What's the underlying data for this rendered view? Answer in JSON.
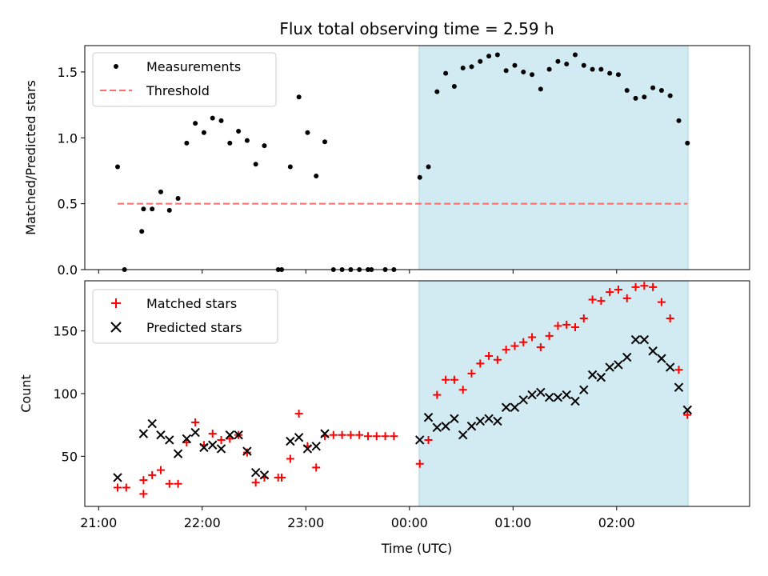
{
  "chart_data": [
    {
      "type": "scatter",
      "title": "Flux total observing time = 2.59 h",
      "ylabel": "Matched/Predicted stars",
      "ylim": [
        0,
        1.7
      ],
      "yticks": [
        "0.0",
        "0.5",
        "1.0",
        "1.5"
      ],
      "x_axis": "time (minutes relative to 21:00 UTC)",
      "xlim": [
        -8,
        377
      ],
      "shaded_region": {
        "x_start": 185.6,
        "x_end": 341.4,
        "color": "#add8e6"
      },
      "legend": {
        "position": "top-left",
        "entries": [
          "Measurements",
          "Threshold"
        ]
      },
      "threshold": {
        "name": "Threshold",
        "y": 0.5,
        "x_start": 11,
        "x_end": 341,
        "color": "#ff6b6b"
      },
      "series": [
        {
          "name": "Measurements",
          "color": "#000000",
          "points": [
            [
              11,
              0.78
            ],
            [
              15,
              0.0
            ],
            [
              25,
              0.29
            ],
            [
              26,
              0.46
            ],
            [
              31,
              0.46
            ],
            [
              36,
              0.59
            ],
            [
              41,
              0.45
            ],
            [
              46,
              0.54
            ],
            [
              51,
              0.96
            ],
            [
              56,
              1.11
            ],
            [
              61,
              1.04
            ],
            [
              66,
              1.15
            ],
            [
              71,
              1.13
            ],
            [
              76,
              0.96
            ],
            [
              81,
              1.05
            ],
            [
              86,
              0.98
            ],
            [
              91,
              0.8
            ],
            [
              96,
              0.94
            ],
            [
              104,
              0.0
            ],
            [
              106,
              0.0
            ],
            [
              111,
              0.78
            ],
            [
              116,
              1.31
            ],
            [
              121,
              1.04
            ],
            [
              126,
              0.71
            ],
            [
              131,
              0.97
            ],
            [
              136,
              0.0
            ],
            [
              141,
              0.0
            ],
            [
              146,
              0.0
            ],
            [
              151,
              0.0
            ],
            [
              156,
              0.0
            ],
            [
              158,
              0.0
            ],
            [
              166,
              0.0
            ],
            [
              171,
              0.0
            ],
            [
              186,
              0.7
            ],
            [
              191,
              0.78
            ],
            [
              196,
              1.35
            ],
            [
              201,
              1.49
            ],
            [
              206,
              1.39
            ],
            [
              211,
              1.53
            ],
            [
              216,
              1.54
            ],
            [
              221,
              1.58
            ],
            [
              226,
              1.62
            ],
            [
              231,
              1.63
            ],
            [
              236,
              1.51
            ],
            [
              241,
              1.55
            ],
            [
              246,
              1.5
            ],
            [
              251,
              1.48
            ],
            [
              256,
              1.37
            ],
            [
              261,
              1.52
            ],
            [
              266,
              1.58
            ],
            [
              271,
              1.56
            ],
            [
              276,
              1.63
            ],
            [
              281,
              1.55
            ],
            [
              286,
              1.52
            ],
            [
              291,
              1.52
            ],
            [
              296,
              1.49
            ],
            [
              301,
              1.48
            ],
            [
              306,
              1.36
            ],
            [
              311,
              1.3
            ],
            [
              316,
              1.31
            ],
            [
              321,
              1.38
            ],
            [
              326,
              1.36
            ],
            [
              331,
              1.32
            ],
            [
              336,
              1.13
            ],
            [
              341,
              0.96
            ]
          ]
        }
      ]
    },
    {
      "type": "scatter",
      "xlabel": "Time (UTC)",
      "ylabel": "Count",
      "ylim": [
        10,
        190
      ],
      "yticks": [
        "50",
        "100",
        "150"
      ],
      "xlim": [
        -8,
        377
      ],
      "xticks": [
        {
          "x": 0,
          "label": "21:00"
        },
        {
          "x": 60,
          "label": "22:00"
        },
        {
          "x": 120,
          "label": "23:00"
        },
        {
          "x": 180,
          "label": "00:00"
        },
        {
          "x": 240,
          "label": "01:00"
        },
        {
          "x": 300,
          "label": "02:00"
        }
      ],
      "shaded_region": {
        "x_start": 185.6,
        "x_end": 341.4,
        "color": "#add8e6"
      },
      "legend": {
        "position": "top-left",
        "entries": [
          "Matched stars",
          "Predicted stars"
        ]
      },
      "series": [
        {
          "name": "Matched stars",
          "marker": "plus",
          "color": "#ff0000",
          "points": [
            [
              11,
              25
            ],
            [
              16,
              25
            ],
            [
              26,
              20
            ],
            [
              26,
              31
            ],
            [
              31,
              35
            ],
            [
              36,
              39
            ],
            [
              41,
              28
            ],
            [
              46,
              28
            ],
            [
              51,
              61
            ],
            [
              56,
              77
            ],
            [
              61,
              59
            ],
            [
              66,
              68
            ],
            [
              71,
              63
            ],
            [
              76,
              64
            ],
            [
              81,
              67
            ],
            [
              86,
              53
            ],
            [
              91,
              29
            ],
            [
              96,
              33
            ],
            [
              104,
              33
            ],
            [
              106,
              33
            ],
            [
              111,
              48
            ],
            [
              116,
              84
            ],
            [
              121,
              58
            ],
            [
              126,
              41
            ],
            [
              131,
              66
            ],
            [
              136,
              67
            ],
            [
              141,
              67
            ],
            [
              146,
              67
            ],
            [
              151,
              67
            ],
            [
              156,
              66
            ],
            [
              161,
              66
            ],
            [
              166,
              66
            ],
            [
              171,
              66
            ],
            [
              186,
              44
            ],
            [
              191,
              63
            ],
            [
              196,
              99
            ],
            [
              201,
              111
            ],
            [
              206,
              111
            ],
            [
              211,
              103
            ],
            [
              216,
              116
            ],
            [
              221,
              124
            ],
            [
              226,
              130
            ],
            [
              231,
              127
            ],
            [
              236,
              135
            ],
            [
              241,
              138
            ],
            [
              246,
              141
            ],
            [
              251,
              145
            ],
            [
              256,
              137
            ],
            [
              261,
              146
            ],
            [
              266,
              154
            ],
            [
              271,
              155
            ],
            [
              276,
              153
            ],
            [
              281,
              160
            ],
            [
              286,
              175
            ],
            [
              291,
              174
            ],
            [
              296,
              181
            ],
            [
              301,
              183
            ],
            [
              306,
              176
            ],
            [
              311,
              185
            ],
            [
              316,
              186
            ],
            [
              321,
              185
            ],
            [
              326,
              173
            ],
            [
              331,
              160
            ],
            [
              336,
              119
            ],
            [
              341,
              83
            ]
          ]
        },
        {
          "name": "Predicted stars",
          "marker": "x",
          "color": "#000000",
          "points": [
            [
              11,
              33
            ],
            [
              26,
              68
            ],
            [
              31,
              76
            ],
            [
              36,
              67
            ],
            [
              41,
              63
            ],
            [
              46,
              52
            ],
            [
              51,
              64
            ],
            [
              56,
              69
            ],
            [
              61,
              57
            ],
            [
              66,
              59
            ],
            [
              71,
              56
            ],
            [
              76,
              67
            ],
            [
              81,
              67
            ],
            [
              86,
              54
            ],
            [
              91,
              37
            ],
            [
              96,
              35
            ],
            [
              111,
              62
            ],
            [
              116,
              65
            ],
            [
              121,
              56
            ],
            [
              126,
              58
            ],
            [
              131,
              68
            ],
            [
              186,
              63
            ],
            [
              191,
              81
            ],
            [
              196,
              73
            ],
            [
              201,
              74
            ],
            [
              206,
              80
            ],
            [
              211,
              67
            ],
            [
              216,
              74
            ],
            [
              221,
              78
            ],
            [
              226,
              80
            ],
            [
              231,
              78
            ],
            [
              236,
              89
            ],
            [
              241,
              89
            ],
            [
              246,
              95
            ],
            [
              251,
              99
            ],
            [
              256,
              101
            ],
            [
              261,
              97
            ],
            [
              266,
              97
            ],
            [
              271,
              99
            ],
            [
              276,
              94
            ],
            [
              281,
              103
            ],
            [
              286,
              115
            ],
            [
              291,
              113
            ],
            [
              296,
              121
            ],
            [
              301,
              123
            ],
            [
              306,
              129
            ],
            [
              311,
              143
            ],
            [
              316,
              143
            ],
            [
              321,
              134
            ],
            [
              326,
              128
            ],
            [
              331,
              121
            ],
            [
              336,
              105
            ],
            [
              341,
              87
            ]
          ]
        }
      ]
    }
  ]
}
